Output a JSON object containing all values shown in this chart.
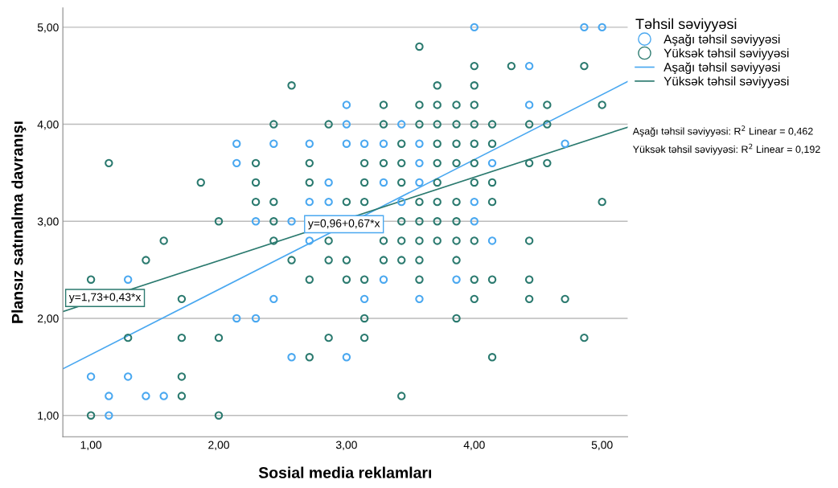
{
  "chart_data": {
    "type": "scatter",
    "xlabel": "Sosial media reklamları",
    "ylabel": "Plansız satınalma davranışı",
    "legend_title": "Təhsil səviyyəsi",
    "legend": "right",
    "grid": "y",
    "xlim": [
      0.78,
      5.2
    ],
    "ylim": [
      0.78,
      5.2
    ],
    "xticks": [
      {
        "value": 1,
        "label": "1,00"
      },
      {
        "value": 2,
        "label": "2,00"
      },
      {
        "value": 3,
        "label": "3,00"
      },
      {
        "value": 4,
        "label": "4,00"
      },
      {
        "value": 5,
        "label": "5,00"
      }
    ],
    "yticks": [
      {
        "value": 1,
        "label": "1,00"
      },
      {
        "value": 2,
        "label": "2,00"
      },
      {
        "value": 3,
        "label": "3,00"
      },
      {
        "value": 4,
        "label": "4,00"
      },
      {
        "value": 5,
        "label": "5,00"
      }
    ],
    "series": [
      {
        "name": "Aşağı təhsil səviyyəsi",
        "marker": "circle",
        "color": "#4aa8f0",
        "x": [
          4.0,
          4.86,
          5.0,
          4.43,
          3.0,
          4.43,
          3.0,
          3.43,
          2.14,
          2.43,
          2.71,
          3.0,
          3.14,
          3.29,
          3.57,
          4.71,
          2.14,
          3.57,
          4.14,
          2.86,
          3.29,
          3.57,
          2.71,
          2.86,
          3.43,
          4.0,
          2.29,
          2.57,
          4.0,
          2.71,
          4.14,
          1.29,
          3.29,
          3.86,
          2.43,
          3.14,
          3.57,
          2.14,
          2.29,
          2.57,
          3.0,
          1.0,
          1.29,
          1.14,
          1.43,
          1.57,
          1.14
        ],
        "values": [
          5.0,
          5.0,
          5.0,
          4.6,
          4.2,
          4.2,
          4.0,
          4.0,
          3.8,
          3.8,
          3.8,
          3.8,
          3.8,
          3.8,
          3.8,
          3.8,
          3.6,
          3.6,
          3.6,
          3.4,
          3.4,
          3.4,
          3.2,
          3.2,
          3.2,
          3.2,
          3.0,
          3.0,
          3.0,
          2.8,
          2.8,
          2.4,
          2.4,
          2.4,
          2.2,
          2.2,
          2.2,
          2.0,
          2.0,
          1.6,
          1.6,
          1.4,
          1.4,
          1.2,
          1.2,
          1.2,
          1.0
        ]
      },
      {
        "name": "Yüksək təhsil səviyyəsi",
        "marker": "circle",
        "color": "#2b7a6f",
        "x": [
          3.57,
          4.0,
          4.29,
          4.86,
          2.57,
          3.71,
          4.0,
          3.29,
          3.57,
          3.71,
          3.86,
          4.0,
          4.57,
          5.0,
          2.43,
          2.86,
          3.29,
          3.57,
          3.71,
          3.86,
          4.0,
          4.14,
          4.43,
          4.57,
          3.43,
          3.71,
          3.86,
          4.0,
          4.14,
          1.14,
          2.29,
          2.71,
          3.14,
          3.29,
          3.43,
          3.71,
          3.86,
          4.0,
          4.43,
          4.57,
          1.86,
          2.29,
          2.71,
          3.14,
          3.43,
          3.71,
          4.0,
          4.14,
          2.29,
          2.43,
          3.0,
          3.14,
          3.57,
          3.71,
          3.86,
          4.14,
          5.0,
          2.0,
          2.43,
          3.43,
          3.57,
          3.71,
          3.86,
          1.57,
          2.43,
          2.86,
          3.29,
          3.43,
          3.57,
          3.71,
          3.86,
          4.0,
          4.43,
          1.43,
          2.57,
          2.86,
          3.0,
          3.29,
          3.43,
          3.57,
          3.86,
          1.0,
          2.71,
          3.0,
          3.14,
          3.57,
          4.0,
          4.14,
          4.43,
          1.71,
          4.0,
          4.43,
          4.71,
          3.14,
          3.86,
          1.29,
          1.71,
          2.0,
          2.86,
          3.14,
          4.86,
          2.71,
          4.14,
          1.71,
          1.71,
          3.43,
          1.0,
          2.0
        ],
        "values": [
          4.8,
          4.6,
          4.6,
          4.6,
          4.4,
          4.4,
          4.4,
          4.2,
          4.2,
          4.2,
          4.2,
          4.2,
          4.2,
          4.2,
          4.0,
          4.0,
          4.0,
          4.0,
          4.0,
          4.0,
          4.0,
          4.0,
          4.0,
          4.0,
          3.8,
          3.8,
          3.8,
          3.8,
          3.8,
          3.6,
          3.6,
          3.6,
          3.6,
          3.6,
          3.6,
          3.6,
          3.6,
          3.6,
          3.6,
          3.6,
          3.4,
          3.4,
          3.4,
          3.4,
          3.4,
          3.4,
          3.4,
          3.4,
          3.2,
          3.2,
          3.2,
          3.2,
          3.2,
          3.2,
          3.2,
          3.2,
          3.2,
          3.0,
          3.0,
          3.0,
          3.0,
          3.0,
          3.0,
          2.8,
          2.8,
          2.8,
          2.8,
          2.8,
          2.8,
          2.8,
          2.8,
          2.8,
          2.8,
          2.6,
          2.6,
          2.6,
          2.6,
          2.6,
          2.6,
          2.6,
          2.6,
          2.4,
          2.4,
          2.4,
          2.4,
          2.4,
          2.4,
          2.4,
          2.4,
          2.2,
          2.2,
          2.2,
          2.2,
          2.0,
          2.0,
          1.8,
          1.8,
          1.8,
          1.8,
          1.8,
          1.8,
          1.6,
          1.6,
          1.4,
          1.2,
          1.2,
          1.0,
          1.0
        ]
      },
      {
        "name": "Aşağı təhsil səviyyəsi",
        "type": "line",
        "color": "#4aa8f0",
        "x": [
          0.78,
          5.2
        ],
        "values": [
          1.48,
          4.44
        ]
      },
      {
        "name": "Yüksək təhsil səviyyəsi",
        "type": "line",
        "color": "#2b7a6f",
        "x": [
          0.78,
          5.2
        ],
        "values": [
          2.07,
          3.97
        ]
      }
    ],
    "annotations": [
      {
        "text": "y=0,96+0,67*x",
        "x": 2.98,
        "y": 2.97
      },
      {
        "text": "y=1,73+0,43*x",
        "x": 1.11,
        "y": 2.21
      },
      "Aşağı təhsil səviyyəsi: R$^{2}$ Linear = 0,462",
      "Yüksək təhsil səviyyəsi: R$^{2}$ Linear = 0,192"
    ]
  }
}
